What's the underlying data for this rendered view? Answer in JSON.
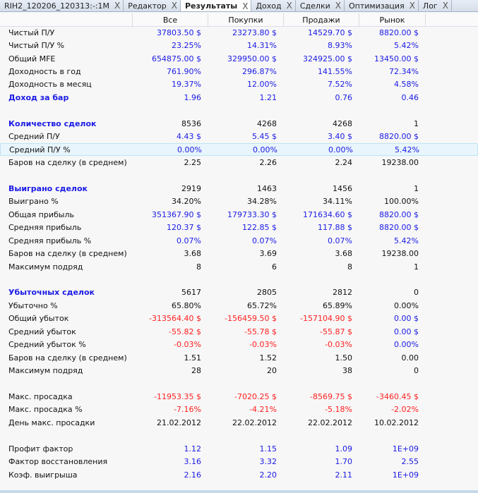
{
  "tabs": [
    {
      "label": "RIH2_120206_120313:-:1M",
      "active": false
    },
    {
      "label": "Редактор",
      "active": false
    },
    {
      "label": "Результаты",
      "active": true
    },
    {
      "label": "Доход",
      "active": false
    },
    {
      "label": "Сделки",
      "active": false
    },
    {
      "label": "Оптимизация",
      "active": false
    },
    {
      "label": "Лог",
      "active": false
    }
  ],
  "tab_close_glyph": "X",
  "columns": [
    "Все",
    "Покупки",
    "Продажи",
    "Рынок"
  ],
  "colors": {
    "b": "#1a1ae6",
    "r": "#ff2020",
    "k": "#111111"
  },
  "rows": [
    {
      "label": "Чистый П/У",
      "values": [
        "37803.50 $",
        "23273.80 $",
        "14529.70 $",
        "8820.00 $"
      ],
      "colors": [
        "b",
        "b",
        "b",
        "b"
      ]
    },
    {
      "label": "Чистый П/У %",
      "values": [
        "23.25%",
        "14.31%",
        "8.93%",
        "5.42%"
      ],
      "colors": [
        "b",
        "b",
        "b",
        "b"
      ]
    },
    {
      "label": "Общий MFE",
      "values": [
        "654875.00 $",
        "329950.00 $",
        "324925.00 $",
        "13450.00 $"
      ],
      "colors": [
        "b",
        "b",
        "b",
        "b"
      ]
    },
    {
      "label": "Доходность в год",
      "values": [
        "761.90%",
        "296.87%",
        "141.55%",
        "72.34%"
      ],
      "colors": [
        "b",
        "b",
        "b",
        "b"
      ]
    },
    {
      "label": "Доходность в месяц",
      "values": [
        "19.37%",
        "12.00%",
        "7.52%",
        "4.58%"
      ],
      "colors": [
        "b",
        "b",
        "b",
        "b"
      ]
    },
    {
      "label": "Доход за бар",
      "bold": true,
      "values": [
        "1.96",
        "1.21",
        "0.76",
        "0.46"
      ],
      "colors": [
        "b",
        "b",
        "b",
        "b"
      ]
    },
    {
      "label": "",
      "values": [
        "",
        "",
        "",
        ""
      ],
      "colors": [
        "k",
        "k",
        "k",
        "k"
      ]
    },
    {
      "label": "Количество сделок",
      "bold": true,
      "values": [
        "8536",
        "4268",
        "4268",
        "1"
      ],
      "colors": [
        "k",
        "k",
        "k",
        "k"
      ]
    },
    {
      "label": "Средний П/У",
      "values": [
        "4.43 $",
        "5.45 $",
        "3.40 $",
        "8820.00 $"
      ],
      "colors": [
        "b",
        "b",
        "b",
        "b"
      ]
    },
    {
      "label": "Средний П/У %",
      "selected": true,
      "values": [
        "0.00%",
        "0.00%",
        "0.00%",
        "5.42%"
      ],
      "colors": [
        "b",
        "b",
        "b",
        "b"
      ]
    },
    {
      "label": "Баров на сделку (в среднем)",
      "values": [
        "2.25",
        "2.26",
        "2.24",
        "19238.00"
      ],
      "colors": [
        "k",
        "k",
        "k",
        "k"
      ]
    },
    {
      "label": "",
      "values": [
        "",
        "",
        "",
        ""
      ],
      "colors": [
        "k",
        "k",
        "k",
        "k"
      ]
    },
    {
      "label": "Выиграно сделок",
      "bold": true,
      "values": [
        "2919",
        "1463",
        "1456",
        "1"
      ],
      "colors": [
        "k",
        "k",
        "k",
        "k"
      ]
    },
    {
      "label": "Выиграно %",
      "values": [
        "34.20%",
        "34.28%",
        "34.11%",
        "100.00%"
      ],
      "colors": [
        "k",
        "k",
        "k",
        "k"
      ]
    },
    {
      "label": "Общая прибыль",
      "values": [
        "351367.90 $",
        "179733.30 $",
        "171634.60 $",
        "8820.00 $"
      ],
      "colors": [
        "b",
        "b",
        "b",
        "b"
      ]
    },
    {
      "label": "Средняя прибыль",
      "values": [
        "120.37 $",
        "122.85 $",
        "117.88 $",
        "8820.00 $"
      ],
      "colors": [
        "b",
        "b",
        "b",
        "b"
      ]
    },
    {
      "label": "Средняя прибыль %",
      "values": [
        "0.07%",
        "0.07%",
        "0.07%",
        "5.42%"
      ],
      "colors": [
        "b",
        "b",
        "b",
        "b"
      ]
    },
    {
      "label": "Баров на сделку (в среднем)",
      "values": [
        "3.68",
        "3.69",
        "3.68",
        "19238.00"
      ],
      "colors": [
        "k",
        "k",
        "k",
        "k"
      ]
    },
    {
      "label": "Максимум подряд",
      "values": [
        "8",
        "6",
        "8",
        "1"
      ],
      "colors": [
        "k",
        "k",
        "k",
        "k"
      ]
    },
    {
      "label": "",
      "values": [
        "",
        "",
        "",
        ""
      ],
      "colors": [
        "k",
        "k",
        "k",
        "k"
      ]
    },
    {
      "label": "Убыточных сделок",
      "bold": true,
      "values": [
        "5617",
        "2805",
        "2812",
        "0"
      ],
      "colors": [
        "k",
        "k",
        "k",
        "k"
      ]
    },
    {
      "label": "Убыточно %",
      "values": [
        "65.80%",
        "65.72%",
        "65.89%",
        "0.00%"
      ],
      "colors": [
        "k",
        "k",
        "k",
        "k"
      ]
    },
    {
      "label": "Общий убыток",
      "values": [
        "-313564.40 $",
        "-156459.50 $",
        "-157104.90 $",
        "0.00 $"
      ],
      "colors": [
        "r",
        "r",
        "r",
        "b"
      ]
    },
    {
      "label": "Средний убыток",
      "values": [
        "-55.82 $",
        "-55.78 $",
        "-55.87 $",
        "0.00 $"
      ],
      "colors": [
        "r",
        "r",
        "r",
        "b"
      ]
    },
    {
      "label": "Средний убыток %",
      "values": [
        "-0.03%",
        "-0.03%",
        "-0.03%",
        "0.00%"
      ],
      "colors": [
        "r",
        "r",
        "r",
        "b"
      ]
    },
    {
      "label": "Баров на сделку (в среднем)",
      "values": [
        "1.51",
        "1.52",
        "1.50",
        "0.00"
      ],
      "colors": [
        "k",
        "k",
        "k",
        "k"
      ]
    },
    {
      "label": "Максимум подряд",
      "values": [
        "28",
        "20",
        "38",
        "0"
      ],
      "colors": [
        "k",
        "k",
        "k",
        "k"
      ]
    },
    {
      "label": "",
      "values": [
        "",
        "",
        "",
        ""
      ],
      "colors": [
        "k",
        "k",
        "k",
        "k"
      ]
    },
    {
      "label": "Макс. просадка",
      "values": [
        "-11953.35 $",
        "-7020.25 $",
        "-8569.75 $",
        "-3460.45 $"
      ],
      "colors": [
        "r",
        "r",
        "r",
        "r"
      ]
    },
    {
      "label": "Макс. просадка %",
      "values": [
        "-7.16%",
        "-4.21%",
        "-5.18%",
        "-2.02%"
      ],
      "colors": [
        "r",
        "r",
        "r",
        "r"
      ]
    },
    {
      "label": "День макс. просадки",
      "values": [
        "21.02.2012",
        "22.02.2012",
        "22.02.2012",
        "10.02.2012"
      ],
      "colors": [
        "k",
        "k",
        "k",
        "k"
      ]
    },
    {
      "label": "",
      "values": [
        "",
        "",
        "",
        ""
      ],
      "colors": [
        "k",
        "k",
        "k",
        "k"
      ]
    },
    {
      "label": "Профит фактор",
      "values": [
        "1.12",
        "1.15",
        "1.09",
        "1E+09"
      ],
      "colors": [
        "b",
        "b",
        "b",
        "b"
      ]
    },
    {
      "label": "Фактор восстановления",
      "values": [
        "3.16",
        "3.32",
        "1.70",
        "2.55"
      ],
      "colors": [
        "b",
        "b",
        "b",
        "b"
      ]
    },
    {
      "label": "Коэф. выигрыша",
      "values": [
        "2.16",
        "2.20",
        "2.11",
        "1E+09"
      ],
      "colors": [
        "b",
        "b",
        "b",
        "b"
      ]
    }
  ]
}
